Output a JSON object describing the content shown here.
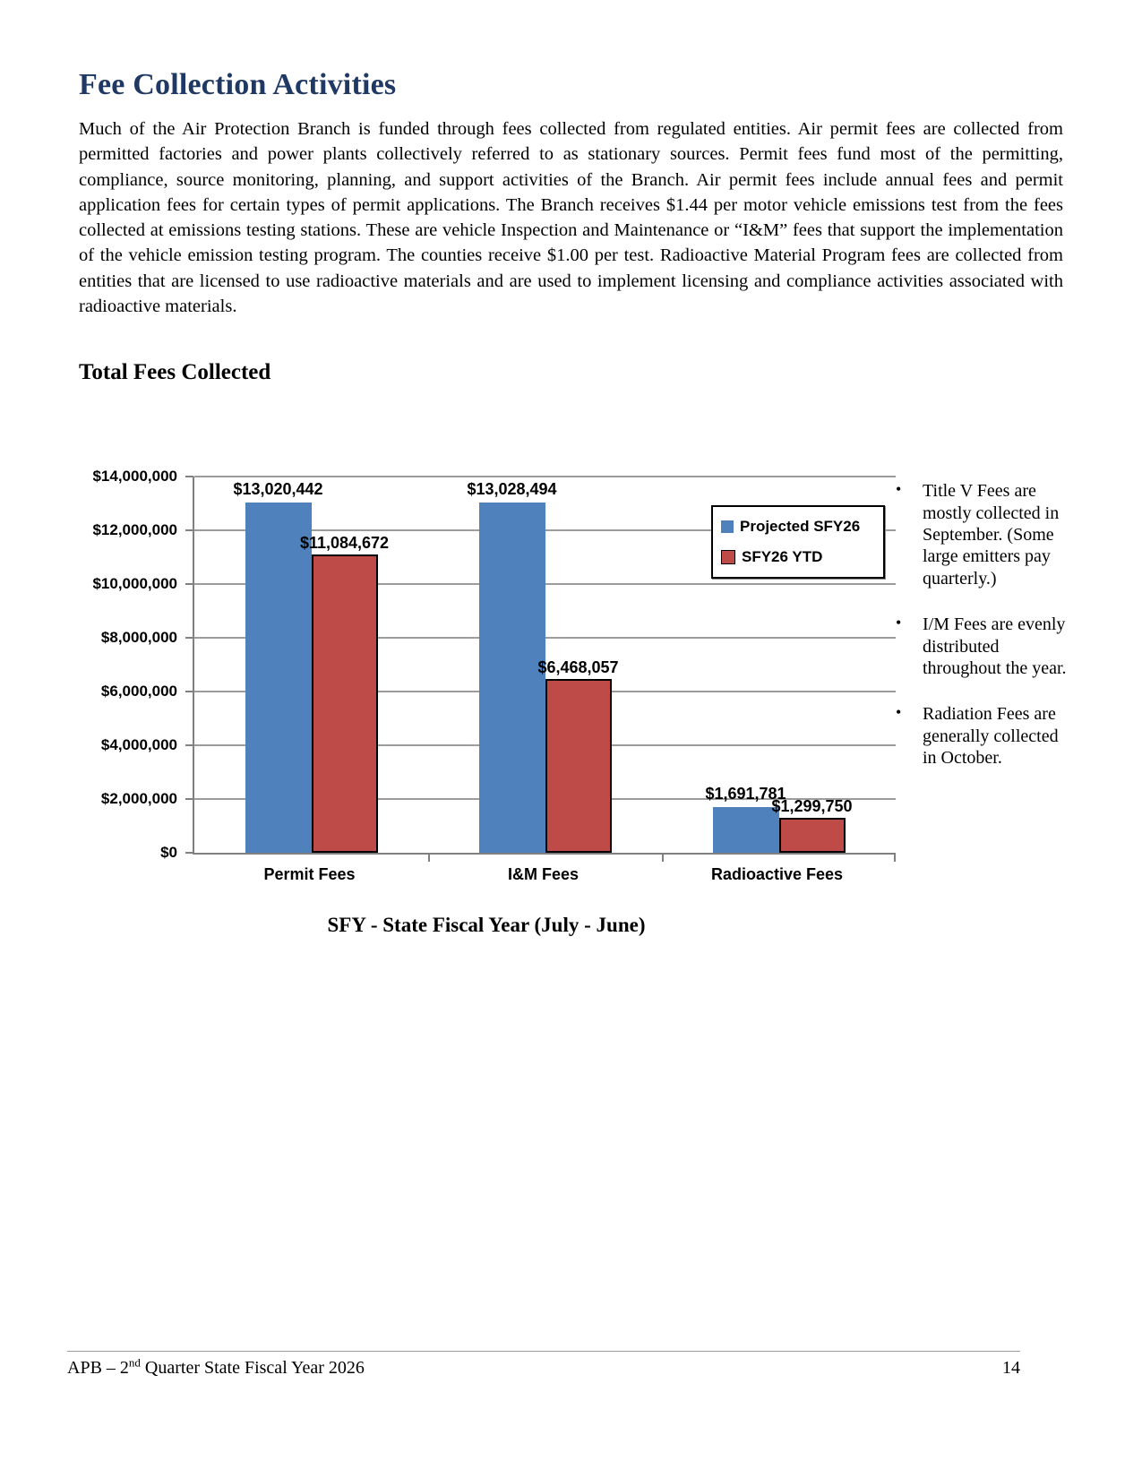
{
  "page": {
    "title": "Fee Collection Activities",
    "body_paragraph": "Much of the Air Protection Branch is funded through fees collected from regulated entities. Air permit fees are collected from permitted factories and power plants collectively referred to as stationary sources. Permit fees fund most of the permitting, compliance, source monitoring, planning, and support activities of the Branch. Air permit fees include annual fees and permit application fees for certain types of permit applications. The Branch receives $1.44 per motor vehicle emissions test from the fees collected at emissions testing stations. These are vehicle Inspection and Maintenance or “I&M” fees that support the implementation of the vehicle emission testing program. The counties receive $1.00 per test. Radioactive Material Program fees are collected from entities that are licensed to use radioactive materials and are used to implement licensing and compliance activities associated with radioactive materials.",
    "section_heading": "Total Fees Collected",
    "footer": {
      "prefix": "APB – 2",
      "superscript": "nd",
      "suffix": " Quarter State Fiscal Year 2026",
      "page_number": "14"
    }
  },
  "chart_data": {
    "type": "bar",
    "title": "",
    "categories": [
      "Permit Fees",
      "I&M Fees",
      "Radioactive Fees"
    ],
    "series": [
      {
        "name": "Projected SFY26",
        "color": "#4F81BD",
        "border_color": null,
        "values": [
          13020442,
          13028494,
          1691781
        ],
        "labels": [
          "$13,020,442",
          "$13,028,494",
          "$1,691,781"
        ]
      },
      {
        "name": "SFY26 YTD",
        "color": "#BE4B48",
        "border_color": "#000000",
        "values": [
          11084672,
          6468057,
          1299750
        ],
        "labels": [
          "$11,084,672",
          "$6,468,057",
          "$1,299,750"
        ]
      }
    ],
    "xlabel": "SFY - State Fiscal Year (July - June)",
    "ylabel": "",
    "ylim": [
      0,
      14000000
    ],
    "ytick_step": 2000000,
    "ytick_labels": [
      "$0",
      "$2,000,000",
      "$4,000,000",
      "$6,000,000",
      "$8,000,000",
      "$10,000,000",
      "$12,000,000",
      "$14,000,000"
    ],
    "grid": true,
    "legend_position": "top-right"
  },
  "annotations": {
    "bullets": [
      "Title V Fees are mostly collected in September. (Some large emitters pay quarterly.)",
      "I/M Fees are evenly distributed throughout the year.",
      "Radiation Fees are generally collected in October."
    ]
  }
}
